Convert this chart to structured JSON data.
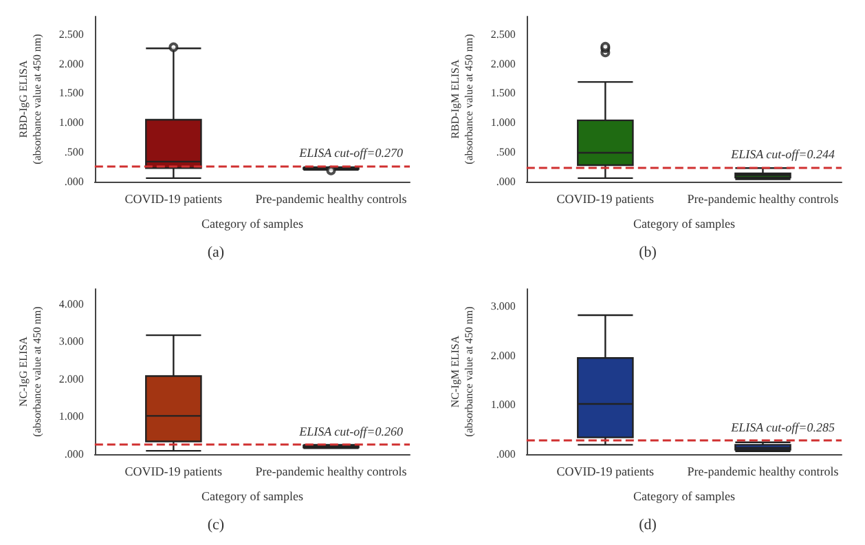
{
  "chart_data": [
    {
      "type": "box",
      "title": "(a)",
      "xlabel": "Category of samples",
      "ylabel": "RBD-IgG ELISA\n(absorbance value at 450 nm)",
      "categories": [
        "COVID-19 patients",
        "Pre-pandemic healthy controls"
      ],
      "color": "#8b1010",
      "boxes": [
        {
          "low": 0.06,
          "q1": 0.23,
          "median": 0.34,
          "q3": 1.05,
          "high": 2.26,
          "outliers": [
            2.28
          ]
        },
        {
          "low": 0.2,
          "q1": 0.215,
          "median": 0.225,
          "q3": 0.235,
          "high": 0.245,
          "outliers": [
            0.19
          ]
        }
      ],
      "ylim": [
        0,
        2.8
      ],
      "yticks": [
        {
          "value": 0,
          "label": ".000"
        },
        {
          "value": 0.5,
          "label": ".500"
        },
        {
          "value": 1,
          "label": "1.000"
        },
        {
          "value": 1.5,
          "label": "1.500"
        },
        {
          "value": 2,
          "label": "2.000"
        },
        {
          "value": 2.5,
          "label": "2.500"
        }
      ],
      "ref_lines": [
        {
          "axis": "y",
          "value": 0.27,
          "label": "ELISA cut-off=0.270",
          "color": "#d03030",
          "line_style": "dashed"
        }
      ],
      "marker": "circle"
    },
    {
      "type": "box",
      "title": "(b)",
      "xlabel": "Category of samples",
      "ylabel": "RBD-IgM ELISA\n(absorbance value at 450 nm)",
      "categories": [
        "COVID-19 patients",
        "Pre-pandemic healthy controls"
      ],
      "color": "#1f6b12",
      "boxes": [
        {
          "low": 0.06,
          "q1": 0.28,
          "median": 0.49,
          "q3": 1.04,
          "high": 1.69,
          "outliers": [
            2.19,
            2.26,
            2.29
          ]
        },
        {
          "low": 0.04,
          "q1": 0.07,
          "median": 0.11,
          "q3": 0.14,
          "high": 0.23
        }
      ],
      "ylim": [
        0,
        2.8
      ],
      "yticks": [
        {
          "value": 0,
          "label": ".000"
        },
        {
          "value": 0.5,
          "label": ".500"
        },
        {
          "value": 1,
          "label": "1.000"
        },
        {
          "value": 1.5,
          "label": "1.500"
        },
        {
          "value": 2,
          "label": "2.000"
        },
        {
          "value": 2.5,
          "label": "2.500"
        }
      ],
      "ref_lines": [
        {
          "axis": "y",
          "value": 0.244,
          "label": "ELISA cut-off=0.244",
          "color": "#d03030",
          "line_style": "dashed"
        }
      ],
      "marker": "circle"
    },
    {
      "type": "box",
      "title": "(c)",
      "xlabel": "Category of samples",
      "ylabel": "NC-IgG ELISA\n(absorbance value at 450 nm)",
      "categories": [
        "COVID-19 patients",
        "Pre-pandemic healthy controls"
      ],
      "color": "#a33512",
      "boxes": [
        {
          "low": 0.09,
          "q1": 0.34,
          "median": 1.02,
          "q3": 2.08,
          "high": 3.17
        },
        {
          "low": 0.16,
          "q1": 0.18,
          "median": 0.2,
          "q3": 0.23,
          "high": 0.25
        }
      ],
      "ylim": [
        0,
        4.4
      ],
      "yticks": [
        {
          "value": 0,
          "label": ".000"
        },
        {
          "value": 1,
          "label": "1.000"
        },
        {
          "value": 2,
          "label": "2.000"
        },
        {
          "value": 3,
          "label": "3.000"
        },
        {
          "value": 4,
          "label": "4.000"
        }
      ],
      "ref_lines": [
        {
          "axis": "y",
          "value": 0.26,
          "label": "ELISA cut-off=0.260",
          "color": "#d03030",
          "line_style": "dashed"
        }
      ]
    },
    {
      "type": "box",
      "title": "(d)",
      "xlabel": "Category of samples",
      "ylabel": "NC-IgM ELISA\n(absorbance value at 450 nm)",
      "categories": [
        "COVID-19 patients",
        "Pre-pandemic healthy controls"
      ],
      "color": "#1d3a8a",
      "boxes": [
        {
          "low": 0.19,
          "q1": 0.34,
          "median": 1.02,
          "q3": 1.95,
          "high": 2.82
        },
        {
          "low": 0.06,
          "q1": 0.09,
          "median": 0.13,
          "q3": 0.19,
          "high": 0.24
        }
      ],
      "ylim": [
        0,
        3.35
      ],
      "yticks": [
        {
          "value": 0,
          "label": ".000"
        },
        {
          "value": 1,
          "label": "1.000"
        },
        {
          "value": 2,
          "label": "2.000"
        },
        {
          "value": 3,
          "label": "3.000"
        }
      ],
      "ref_lines": [
        {
          "axis": "y",
          "value": 0.285,
          "label": "ELISA cut-off=0.285",
          "color": "#d03030",
          "line_style": "dashed"
        }
      ]
    }
  ]
}
